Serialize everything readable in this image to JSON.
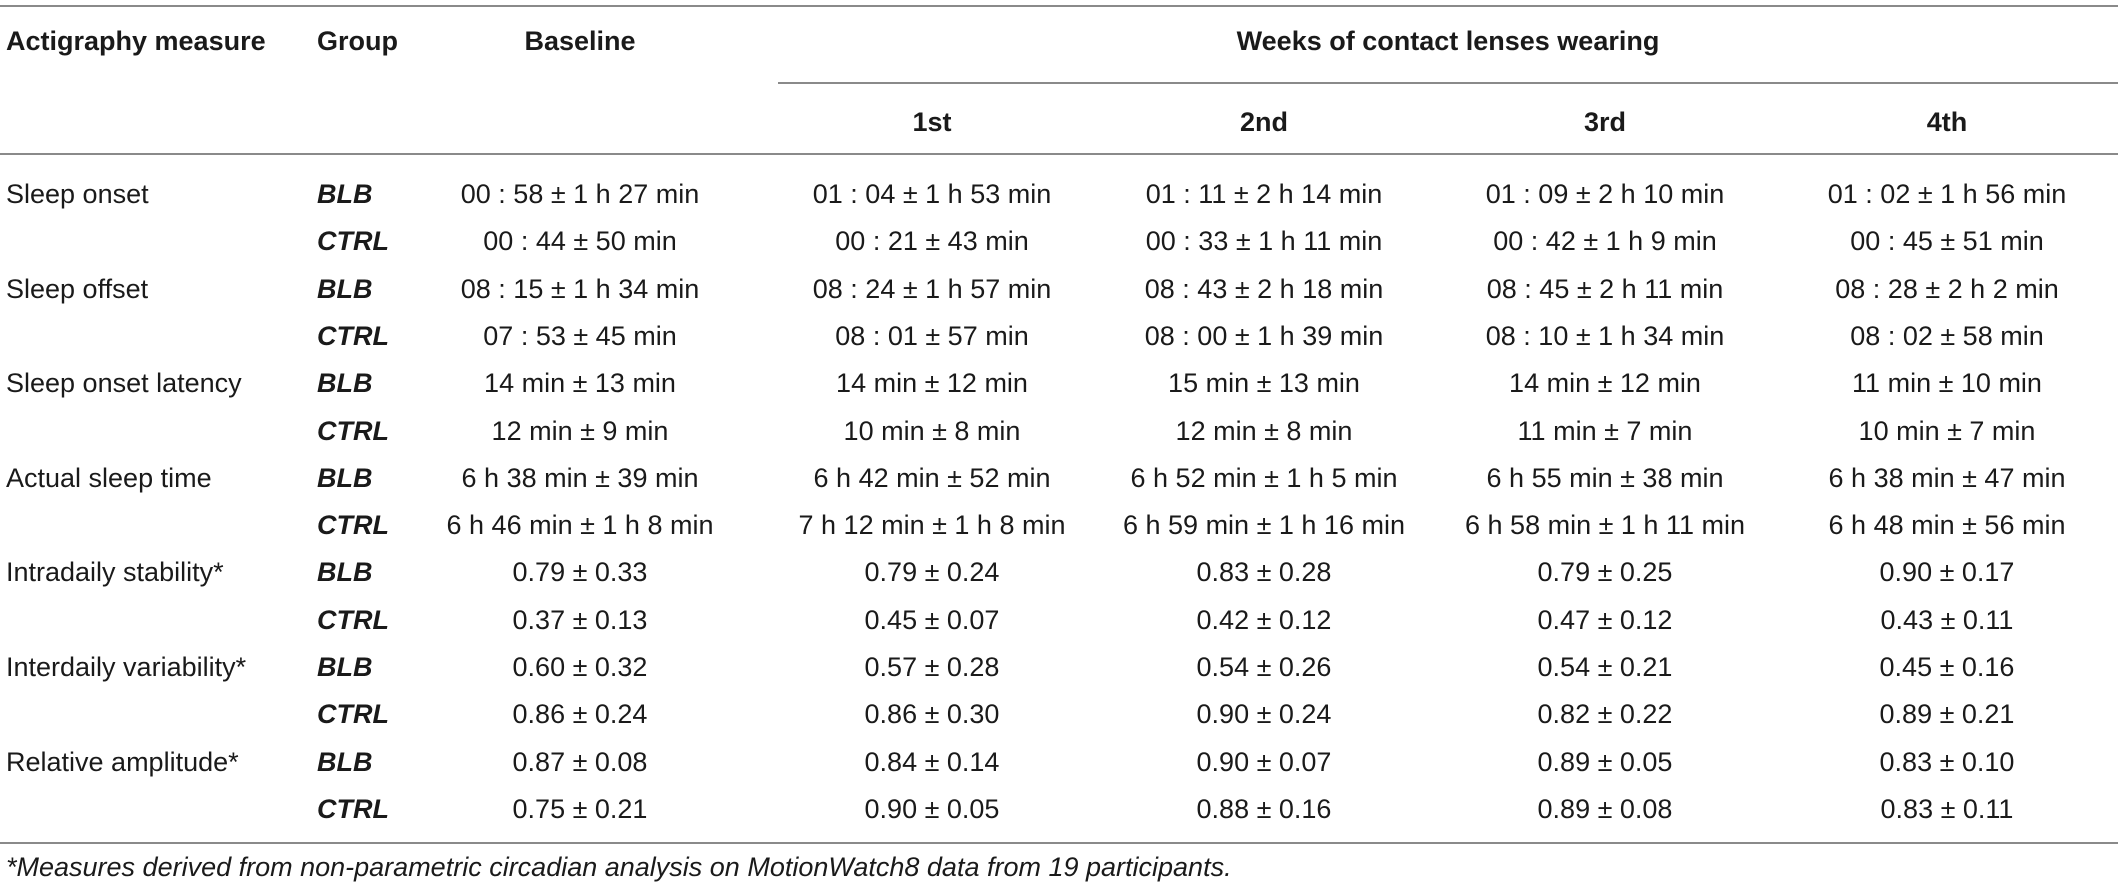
{
  "table": {
    "headers": {
      "measure": "Actigraphy measure",
      "group": "Group",
      "baseline": "Baseline",
      "weeks_span": "Weeks of contact lenses wearing",
      "weeks": [
        "1st",
        "2nd",
        "3rd",
        "4th"
      ]
    },
    "rows": [
      {
        "measure": "Sleep onset",
        "group": "BLB",
        "values": [
          "00 : 58 ± 1 h 27 min",
          "01 : 04 ± 1 h 53 min",
          "01 : 11 ± 2 h 14 min",
          "01 : 09 ± 2 h 10 min",
          "01 : 02 ± 1 h 56 min"
        ]
      },
      {
        "measure": "",
        "group": "CTRL",
        "values": [
          "00 : 44 ± 50 min",
          "00 : 21 ± 43 min",
          "00 : 33 ± 1 h 11 min",
          "00 : 42 ± 1 h 9 min",
          "00 : 45 ± 51 min"
        ]
      },
      {
        "measure": "Sleep offset",
        "group": "BLB",
        "values": [
          "08 : 15 ± 1 h 34 min",
          "08 : 24 ± 1 h 57 min",
          "08 : 43 ± 2 h 18 min",
          "08 : 45 ± 2 h 11 min",
          "08 : 28 ± 2 h 2 min"
        ]
      },
      {
        "measure": "",
        "group": "CTRL",
        "values": [
          "07 : 53 ± 45 min",
          "08 : 01 ± 57 min",
          "08 : 00 ± 1 h 39 min",
          "08 : 10 ± 1 h 34 min",
          "08 : 02 ± 58 min"
        ]
      },
      {
        "measure": "Sleep onset latency",
        "group": "BLB",
        "values": [
          "14 min ± 13 min",
          "14 min ± 12 min",
          "15 min ± 13 min",
          "14 min ± 12 min",
          "11 min ± 10 min"
        ]
      },
      {
        "measure": "",
        "group": "CTRL",
        "values": [
          "12 min ± 9 min",
          "10 min ± 8 min",
          "12 min ± 8 min",
          "11 min ± 7 min",
          "10 min ± 7 min"
        ]
      },
      {
        "measure": "Actual sleep time",
        "group": "BLB",
        "values": [
          "6 h 38 min ± 39 min",
          "6 h 42 min ± 52 min",
          "6 h 52 min ± 1 h 5 min",
          "6 h 55 min ± 38 min",
          "6 h 38 min ± 47 min"
        ]
      },
      {
        "measure": "",
        "group": "CTRL",
        "values": [
          "6 h 46 min ± 1 h 8 min",
          "7 h 12 min ± 1 h 8 min",
          "6 h 59 min ± 1 h 16 min",
          "6 h 58 min ± 1 h 11 min",
          "6 h 48 min ± 56 min"
        ]
      },
      {
        "measure": "Intradaily stability*",
        "group": "BLB",
        "values": [
          "0.79 ± 0.33",
          "0.79 ± 0.24",
          "0.83 ± 0.28",
          "0.79 ± 0.25",
          "0.90 ± 0.17"
        ]
      },
      {
        "measure": "",
        "group": "CTRL",
        "values": [
          "0.37 ± 0.13",
          "0.45 ± 0.07",
          "0.42 ± 0.12",
          "0.47 ± 0.12",
          "0.43 ± 0.11"
        ]
      },
      {
        "measure": "Interdaily variability*",
        "group": "BLB",
        "values": [
          "0.60 ± 0.32",
          "0.57 ± 0.28",
          "0.54 ± 0.26",
          "0.54 ± 0.21",
          "0.45 ± 0.16"
        ]
      },
      {
        "measure": "",
        "group": "CTRL",
        "values": [
          "0.86 ± 0.24",
          "0.86 ± 0.30",
          "0.90 ± 0.24",
          "0.82 ± 0.22",
          "0.89 ± 0.21"
        ]
      },
      {
        "measure": "Relative amplitude*",
        "group": "BLB",
        "values": [
          "0.87 ± 0.08",
          "0.84 ± 0.14",
          "0.90 ± 0.07",
          "0.89 ± 0.05",
          "0.83 ± 0.10"
        ]
      },
      {
        "measure": "",
        "group": "CTRL",
        "values": [
          "0.75 ± 0.21",
          "0.90 ± 0.05",
          "0.88 ± 0.16",
          "0.89 ± 0.08",
          "0.83 ± 0.11"
        ]
      }
    ],
    "footnote": "*Measures derived from non-parametric circadian analysis on MotionWatch8 data from 19 participants."
  }
}
